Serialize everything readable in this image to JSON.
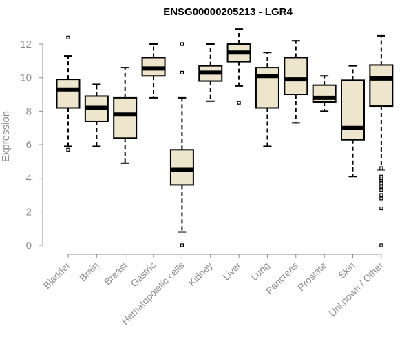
{
  "chart_data": {
    "type": "box",
    "title": "ENSG00000205213 - LGR4",
    "ylabel": "Expression",
    "xlabel": "",
    "ylim": [
      0,
      13
    ],
    "yticks": [
      0,
      2,
      4,
      6,
      8,
      10,
      12
    ],
    "colors": {
      "box_fill": "#ede5cc",
      "box_stroke": "#000000",
      "axis": "#8c8c8c",
      "title": "#000000"
    },
    "categories": [
      "Bladder",
      "Brain",
      "Breast",
      "Gastric",
      "Hematopoietic cells",
      "Kidney",
      "Liver",
      "Lung",
      "Pancreas",
      "Prostate",
      "Skin",
      "Unknown / Other"
    ],
    "boxes": [
      {
        "category": "Bladder",
        "whisker_low": 5.9,
        "q1": 8.2,
        "median": 9.3,
        "q3": 9.9,
        "whisker_high": 11.3,
        "outliers": [
          5.7,
          12.4
        ]
      },
      {
        "category": "Brain",
        "whisker_low": 5.9,
        "q1": 7.4,
        "median": 8.2,
        "q3": 8.9,
        "whisker_high": 9.6,
        "outliers": []
      },
      {
        "category": "Breast",
        "whisker_low": 4.9,
        "q1": 6.4,
        "median": 7.8,
        "q3": 8.8,
        "whisker_high": 10.6,
        "outliers": []
      },
      {
        "category": "Gastric",
        "whisker_low": 8.8,
        "q1": 10.1,
        "median": 10.55,
        "q3": 11.2,
        "whisker_high": 12.0,
        "outliers": []
      },
      {
        "category": "Hematopoietic cells",
        "whisker_low": 0.8,
        "q1": 3.6,
        "median": 4.5,
        "q3": 5.7,
        "whisker_high": 8.8,
        "outliers": [
          0.0,
          10.3,
          12.0
        ]
      },
      {
        "category": "Kidney",
        "whisker_low": 8.6,
        "q1": 9.8,
        "median": 10.3,
        "q3": 10.7,
        "whisker_high": 12.0,
        "outliers": []
      },
      {
        "category": "Liver",
        "whisker_low": 9.5,
        "q1": 10.95,
        "median": 11.5,
        "q3": 12.0,
        "whisker_high": 12.9,
        "outliers": [
          8.5
        ]
      },
      {
        "category": "Lung",
        "whisker_low": 5.9,
        "q1": 8.2,
        "median": 10.1,
        "q3": 10.6,
        "whisker_high": 11.5,
        "outliers": []
      },
      {
        "category": "Pancreas",
        "whisker_low": 7.3,
        "q1": 9.0,
        "median": 9.9,
        "q3": 11.2,
        "whisker_high": 12.2,
        "outliers": []
      },
      {
        "category": "Prostate",
        "whisker_low": 8.0,
        "q1": 8.55,
        "median": 8.8,
        "q3": 9.55,
        "whisker_high": 10.1,
        "outliers": []
      },
      {
        "category": "Skin",
        "whisker_low": 4.1,
        "q1": 6.3,
        "median": 7.0,
        "q3": 9.85,
        "whisker_high": 10.7,
        "outliers": []
      },
      {
        "category": "Unknown / Other",
        "whisker_low": 4.5,
        "q1": 8.3,
        "median": 9.95,
        "q3": 10.75,
        "whisker_high": 12.5,
        "outliers": [
          0.0,
          2.2,
          2.8,
          3.0,
          3.3,
          3.5,
          3.7,
          3.9,
          4.0,
          4.1,
          4.6
        ]
      }
    ]
  }
}
